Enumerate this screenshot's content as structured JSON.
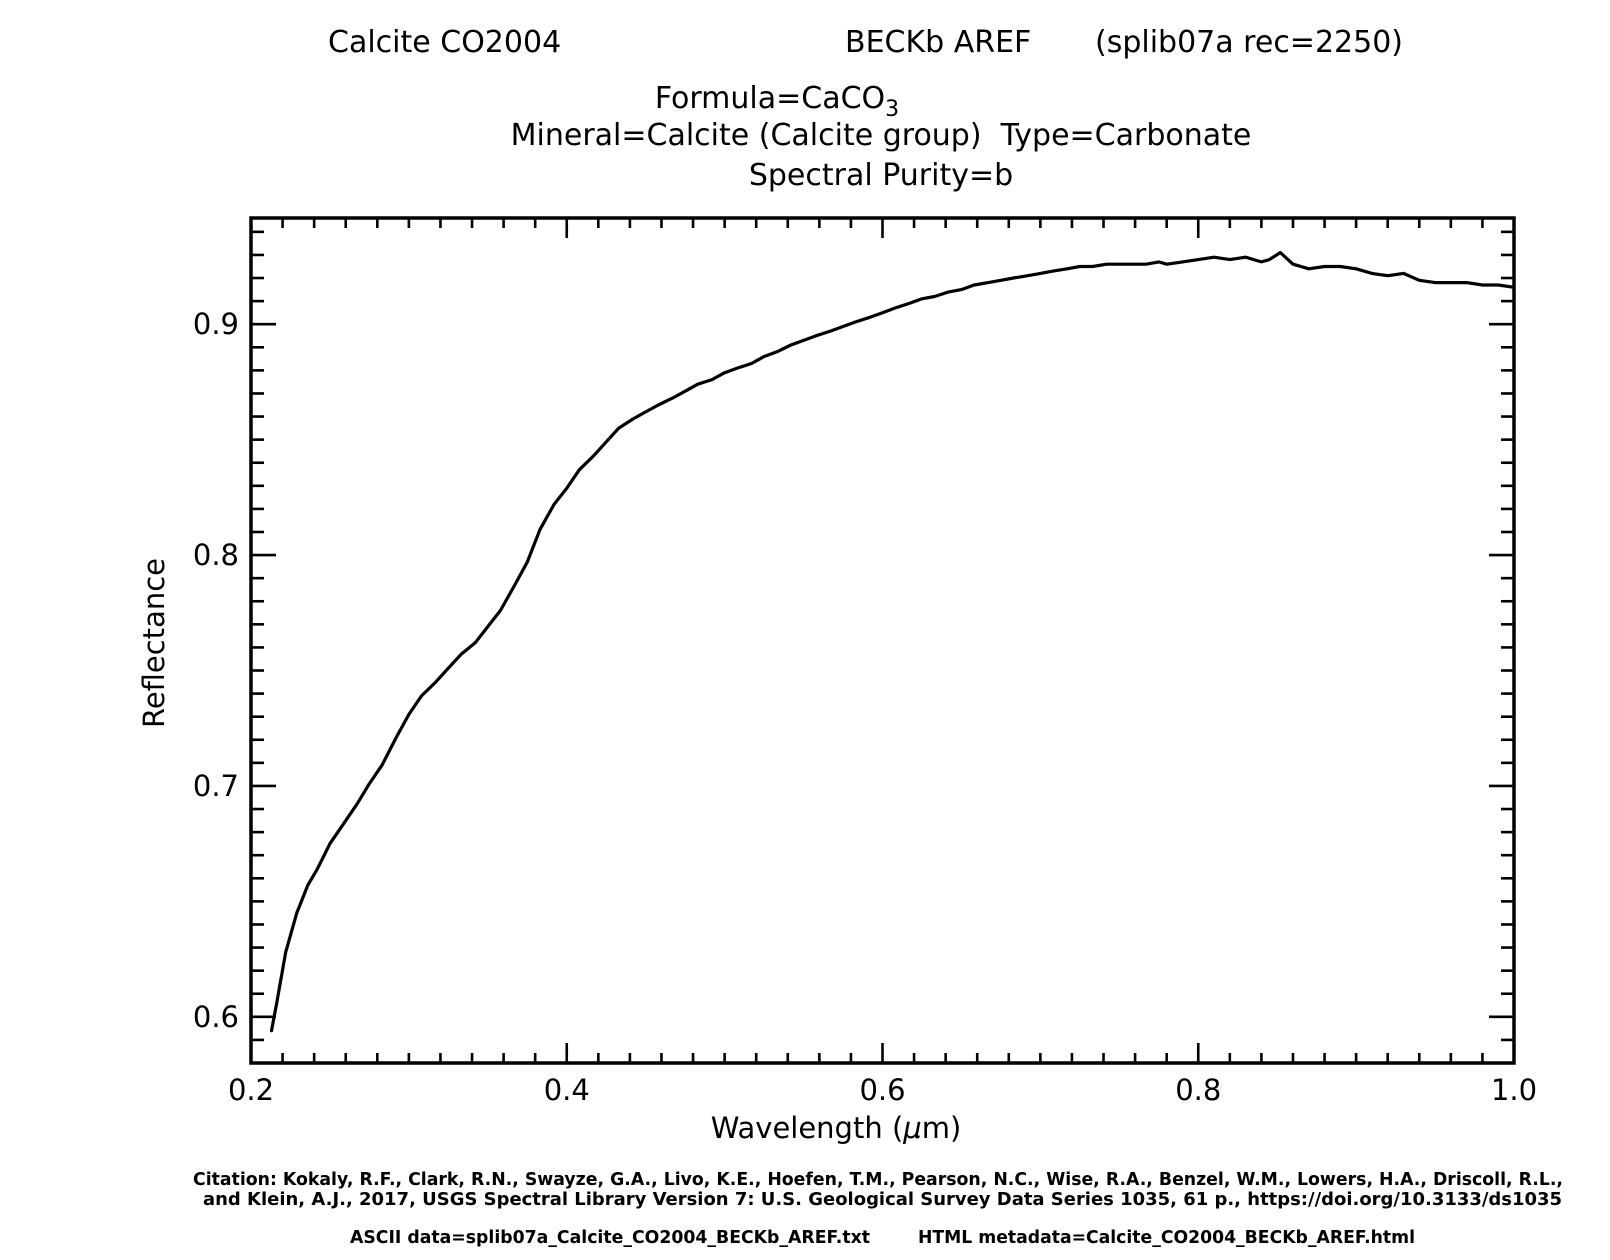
{
  "header": {
    "sample_name": "Calcite CO2004",
    "spectrometer": "BECKb AREF",
    "record": "(splib07a rec=2250)",
    "formula_prefix": "Formula=CaCO",
    "formula_subscript": "3",
    "mineral_line": "Mineral=Calcite (Calcite group)  Type=Carbonate",
    "purity_line": "Spectral Purity=b"
  },
  "footer": {
    "citation_line1": "Citation: Kokaly, R.F., Clark, R.N., Swayze, G.A., Livo, K.E., Hoefen, T.M., Pearson, N.C., Wise, R.A., Benzel, W.M., Lowers, H.A., Driscoll, R.L.,",
    "citation_line2": "and Klein, A.J., 2017, USGS Spectral Library Version 7: U.S. Geological Survey Data Series 1035, 61 p., https://doi.org/10.3133/ds1035",
    "ascii_data": "ASCII data=splib07a_Calcite_CO2004_BECKb_AREF.txt",
    "html_metadata": "HTML metadata=Calcite_CO2004_BECKb_AREF.html"
  },
  "chart_data": {
    "type": "line",
    "xlabel_prefix": "Wavelength (",
    "xlabel_mu": "μ",
    "xlabel_suffix": "m)",
    "ylabel": "Reflectance",
    "xlim": [
      0.2,
      1.0
    ],
    "ylim": [
      0.58,
      0.946
    ],
    "x_ticks": [
      "0.2",
      "0.4",
      "0.6",
      "0.8",
      "1.0"
    ],
    "y_ticks": [
      "0.6",
      "0.7",
      "0.8",
      "0.9"
    ],
    "grid": false,
    "line_color": "#000000",
    "series": [
      {
        "x": [
          0.213,
          0.216,
          0.222,
          0.229,
          0.236,
          0.242,
          0.25,
          0.258,
          0.267,
          0.275,
          0.283,
          0.292,
          0.3,
          0.308,
          0.317,
          0.325,
          0.333,
          0.342,
          0.35,
          0.358,
          0.367,
          0.375,
          0.383,
          0.392,
          0.4,
          0.408,
          0.417,
          0.425,
          0.433,
          0.442,
          0.45,
          0.458,
          0.467,
          0.475,
          0.483,
          0.492,
          0.5,
          0.508,
          0.517,
          0.525,
          0.533,
          0.542,
          0.55,
          0.558,
          0.567,
          0.575,
          0.583,
          0.592,
          0.6,
          0.608,
          0.617,
          0.625,
          0.633,
          0.642,
          0.65,
          0.658,
          0.667,
          0.675,
          0.683,
          0.692,
          0.7,
          0.708,
          0.717,
          0.725,
          0.733,
          0.742,
          0.75,
          0.758,
          0.767,
          0.775,
          0.78,
          0.79,
          0.8,
          0.81,
          0.82,
          0.83,
          0.84,
          0.845,
          0.852,
          0.86,
          0.87,
          0.88,
          0.89,
          0.9,
          0.91,
          0.92,
          0.93,
          0.94,
          0.95,
          0.96,
          0.97,
          0.98,
          0.99,
          1.0
        ],
        "y": [
          0.594,
          0.605,
          0.628,
          0.645,
          0.657,
          0.664,
          0.675,
          0.683,
          0.692,
          0.701,
          0.709,
          0.721,
          0.731,
          0.739,
          0.745,
          0.751,
          0.757,
          0.762,
          0.769,
          0.776,
          0.787,
          0.797,
          0.811,
          0.822,
          0.829,
          0.837,
          0.843,
          0.849,
          0.855,
          0.859,
          0.862,
          0.865,
          0.868,
          0.871,
          0.874,
          0.876,
          0.879,
          0.881,
          0.883,
          0.886,
          0.888,
          0.891,
          0.893,
          0.895,
          0.897,
          0.899,
          0.901,
          0.903,
          0.905,
          0.907,
          0.909,
          0.911,
          0.912,
          0.914,
          0.915,
          0.917,
          0.918,
          0.919,
          0.92,
          0.921,
          0.922,
          0.923,
          0.924,
          0.925,
          0.925,
          0.926,
          0.926,
          0.926,
          0.926,
          0.927,
          0.926,
          0.927,
          0.928,
          0.929,
          0.928,
          0.929,
          0.927,
          0.928,
          0.931,
          0.926,
          0.924,
          0.925,
          0.925,
          0.924,
          0.922,
          0.921,
          0.922,
          0.919,
          0.918,
          0.918,
          0.918,
          0.917,
          0.917,
          0.916
        ]
      }
    ]
  }
}
